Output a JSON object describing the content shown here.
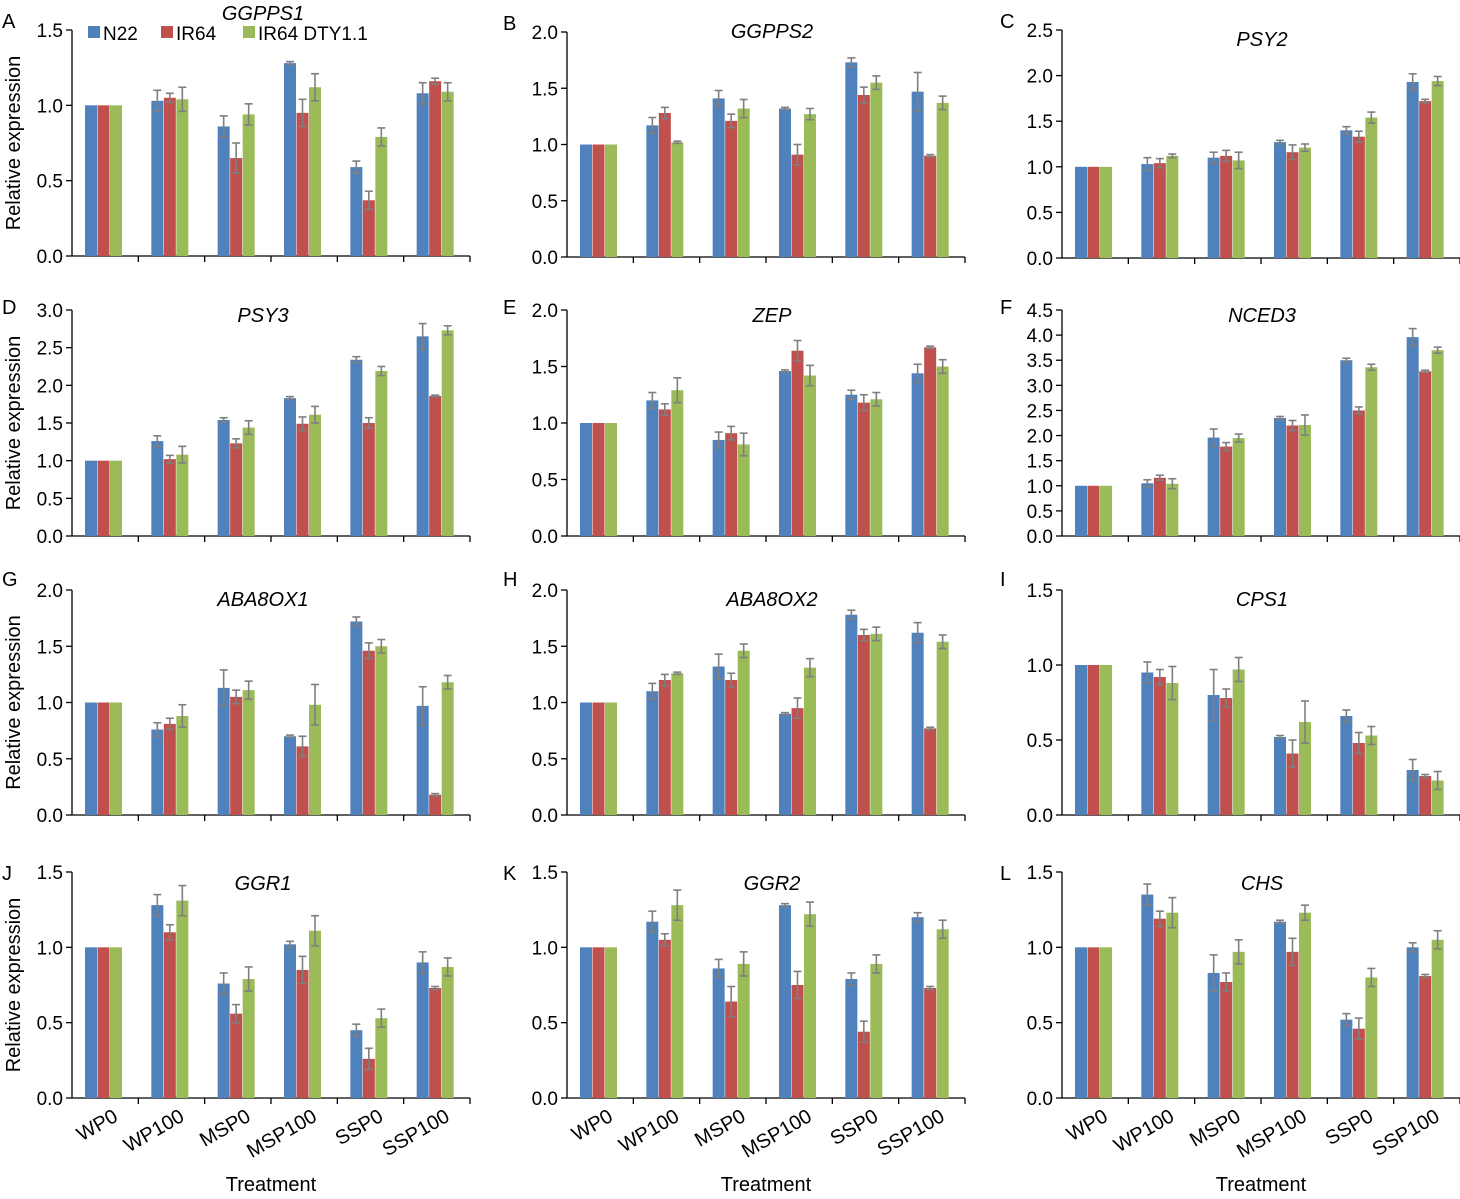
{
  "chart_data": [
    {
      "letter": "A",
      "gene": "GGPPS1",
      "type": "bar",
      "ylabel": "Relative expression",
      "xlabel": "",
      "yticks": [
        "0.0",
        "0.5",
        "1.0",
        "1.5"
      ],
      "ylim": [
        0,
        1.5
      ],
      "series": [
        {
          "name": "N22",
          "values": [
            1.0,
            1.03,
            0.86,
            1.28,
            0.59,
            1.08
          ],
          "errors": [
            0.005,
            0.07,
            0.07,
            0.01,
            0.04,
            0.07
          ]
        },
        {
          "name": "IR64",
          "values": [
            1.0,
            1.05,
            0.65,
            0.95,
            0.37,
            1.16
          ],
          "errors": [
            0.005,
            0.03,
            0.1,
            0.09,
            0.06,
            0.02
          ]
        },
        {
          "name": "IR64 DTY1.1",
          "values": [
            1.0,
            1.04,
            0.94,
            1.12,
            0.79,
            1.09
          ],
          "errors": [
            0.005,
            0.08,
            0.07,
            0.09,
            0.06,
            0.06
          ]
        }
      ]
    },
    {
      "letter": "B",
      "gene": "GGPPS2",
      "type": "bar",
      "ylabel": "",
      "xlabel": "",
      "yticks": [
        "0.0",
        "0.5",
        "1.0",
        "1.5",
        "2.0"
      ],
      "ylim": [
        0,
        2.0
      ],
      "series": [
        {
          "name": "N22",
          "values": [
            1.0,
            1.17,
            1.41,
            1.32,
            1.73,
            1.47
          ],
          "errors": [
            0.005,
            0.07,
            0.07,
            0.01,
            0.04,
            0.17
          ]
        },
        {
          "name": "IR64",
          "values": [
            1.0,
            1.28,
            1.21,
            0.91,
            1.44,
            0.9
          ],
          "errors": [
            0.005,
            0.05,
            0.06,
            0.09,
            0.07,
            0.01
          ]
        },
        {
          "name": "IR64 DTY1.1",
          "values": [
            1.0,
            1.02,
            1.32,
            1.27,
            1.55,
            1.37
          ],
          "errors": [
            0.005,
            0.01,
            0.08,
            0.05,
            0.06,
            0.06
          ]
        }
      ]
    },
    {
      "letter": "C",
      "gene": "PSY2",
      "type": "bar",
      "ylabel": "",
      "xlabel": "",
      "yticks": [
        "0.0",
        "0.5",
        "1.0",
        "1.5",
        "2.0",
        "2.5"
      ],
      "ylim": [
        0,
        2.5
      ],
      "series": [
        {
          "name": "N22",
          "values": [
            1.0,
            1.03,
            1.1,
            1.27,
            1.4,
            1.93
          ],
          "errors": [
            0.005,
            0.07,
            0.06,
            0.02,
            0.04,
            0.09
          ]
        },
        {
          "name": "IR64",
          "values": [
            1.0,
            1.04,
            1.12,
            1.16,
            1.33,
            1.72
          ],
          "errors": [
            0.005,
            0.05,
            0.06,
            0.08,
            0.06,
            0.02
          ]
        },
        {
          "name": "IR64 DTY1.1",
          "values": [
            1.0,
            1.12,
            1.07,
            1.21,
            1.54,
            1.94
          ],
          "errors": [
            0.005,
            0.02,
            0.09,
            0.04,
            0.06,
            0.05
          ]
        }
      ]
    },
    {
      "letter": "D",
      "gene": "PSY3",
      "type": "bar",
      "ylabel": "Relative expression",
      "xlabel": "",
      "yticks": [
        "0.0",
        "0.5",
        "1.0",
        "1.5",
        "2.0",
        "2.5",
        "3.0"
      ],
      "ylim": [
        0,
        3.0
      ],
      "series": [
        {
          "name": "N22",
          "values": [
            1.0,
            1.26,
            1.54,
            1.83,
            2.34,
            2.65
          ],
          "errors": [
            0.005,
            0.07,
            0.03,
            0.02,
            0.04,
            0.17
          ]
        },
        {
          "name": "IR64",
          "values": [
            1.0,
            1.02,
            1.23,
            1.49,
            1.5,
            1.86
          ],
          "errors": [
            0.005,
            0.05,
            0.06,
            0.09,
            0.07,
            0.01
          ]
        },
        {
          "name": "IR64 DTY1.1",
          "values": [
            1.0,
            1.08,
            1.44,
            1.61,
            2.19,
            2.73
          ],
          "errors": [
            0.005,
            0.11,
            0.09,
            0.11,
            0.06,
            0.06
          ]
        }
      ]
    },
    {
      "letter": "E",
      "gene": "ZEP",
      "type": "bar",
      "ylabel": "",
      "xlabel": "",
      "yticks": [
        "0.0",
        "0.5",
        "1.0",
        "1.5",
        "2.0"
      ],
      "ylim": [
        0,
        2.0
      ],
      "series": [
        {
          "name": "N22",
          "values": [
            1.0,
            1.2,
            0.85,
            1.46,
            1.25,
            1.44
          ],
          "errors": [
            0.005,
            0.07,
            0.07,
            0.01,
            0.04,
            0.08
          ]
        },
        {
          "name": "IR64",
          "values": [
            1.0,
            1.12,
            0.91,
            1.64,
            1.18,
            1.67
          ],
          "errors": [
            0.005,
            0.05,
            0.06,
            0.09,
            0.07,
            0.01
          ]
        },
        {
          "name": "IR64 DTY1.1",
          "values": [
            1.0,
            1.29,
            0.81,
            1.42,
            1.21,
            1.5
          ],
          "errors": [
            0.005,
            0.11,
            0.1,
            0.09,
            0.06,
            0.06
          ]
        }
      ]
    },
    {
      "letter": "F",
      "gene": "NCED3",
      "type": "bar",
      "ylabel": "",
      "xlabel": "",
      "yticks": [
        "0.0",
        "0.5",
        "1.0",
        "1.5",
        "2.0",
        "2.5",
        "3.0",
        "3.5",
        "4.0",
        "4.5"
      ],
      "ylim": [
        0,
        4.5
      ],
      "series": [
        {
          "name": "N22",
          "values": [
            1.0,
            1.05,
            1.96,
            2.35,
            3.5,
            3.96
          ],
          "errors": [
            0.005,
            0.07,
            0.17,
            0.03,
            0.04,
            0.17
          ]
        },
        {
          "name": "IR64",
          "values": [
            1.0,
            1.16,
            1.78,
            2.2,
            2.5,
            3.28
          ],
          "errors": [
            0.005,
            0.05,
            0.08,
            0.1,
            0.07,
            0.02
          ]
        },
        {
          "name": "IR64 DTY1.1",
          "values": [
            1.0,
            1.04,
            1.95,
            2.21,
            3.36,
            3.7
          ],
          "errors": [
            0.005,
            0.1,
            0.08,
            0.2,
            0.06,
            0.06
          ]
        }
      ]
    },
    {
      "letter": "G",
      "gene": "ABA8OX1",
      "type": "bar",
      "ylabel": "Relative expression",
      "xlabel": "",
      "yticks": [
        "0.0",
        "0.5",
        "1.0",
        "1.5",
        "2.0"
      ],
      "ylim": [
        0,
        2.0
      ],
      "series": [
        {
          "name": "N22",
          "values": [
            1.0,
            0.76,
            1.13,
            0.7,
            1.72,
            0.97
          ],
          "errors": [
            0.005,
            0.06,
            0.16,
            0.01,
            0.04,
            0.17
          ]
        },
        {
          "name": "IR64",
          "values": [
            1.0,
            0.81,
            1.05,
            0.61,
            1.46,
            0.18
          ],
          "errors": [
            0.005,
            0.05,
            0.06,
            0.09,
            0.07,
            0.01
          ]
        },
        {
          "name": "IR64 DTY1.1",
          "values": [
            1.0,
            0.88,
            1.11,
            0.98,
            1.5,
            1.18
          ],
          "errors": [
            0.005,
            0.1,
            0.08,
            0.18,
            0.06,
            0.06
          ]
        }
      ]
    },
    {
      "letter": "H",
      "gene": "ABA8OX2",
      "type": "bar",
      "ylabel": "",
      "xlabel": "",
      "yticks": [
        "0.0",
        "0.5",
        "1.0",
        "1.5",
        "2.0"
      ],
      "ylim": [
        0,
        2.0
      ],
      "series": [
        {
          "name": "N22",
          "values": [
            1.0,
            1.1,
            1.32,
            0.9,
            1.78,
            1.62
          ],
          "errors": [
            0.005,
            0.07,
            0.11,
            0.01,
            0.04,
            0.09
          ]
        },
        {
          "name": "IR64",
          "values": [
            1.0,
            1.2,
            1.2,
            0.95,
            1.6,
            0.77
          ],
          "errors": [
            0.005,
            0.05,
            0.06,
            0.09,
            0.05,
            0.01
          ]
        },
        {
          "name": "IR64 DTY1.1",
          "values": [
            1.0,
            1.26,
            1.46,
            1.31,
            1.61,
            1.54
          ],
          "errors": [
            0.005,
            0.01,
            0.06,
            0.08,
            0.06,
            0.06
          ]
        }
      ]
    },
    {
      "letter": "I",
      "gene": "CPS1",
      "type": "bar",
      "ylabel": "",
      "xlabel": "",
      "yticks": [
        "0.0",
        "0.5",
        "1.0",
        "1.5"
      ],
      "ylim": [
        0,
        1.5
      ],
      "series": [
        {
          "name": "N22",
          "values": [
            1.0,
            0.95,
            0.8,
            0.52,
            0.66,
            0.3
          ],
          "errors": [
            0.005,
            0.07,
            0.17,
            0.01,
            0.04,
            0.07
          ]
        },
        {
          "name": "IR64",
          "values": [
            1.0,
            0.92,
            0.78,
            0.41,
            0.48,
            0.26
          ],
          "errors": [
            0.005,
            0.05,
            0.06,
            0.09,
            0.07,
            0.01
          ]
        },
        {
          "name": "IR64 DTY1.1",
          "values": [
            1.0,
            0.88,
            0.97,
            0.62,
            0.53,
            0.23
          ],
          "errors": [
            0.005,
            0.11,
            0.08,
            0.14,
            0.06,
            0.06
          ]
        }
      ]
    },
    {
      "letter": "J",
      "gene": "GGR1",
      "type": "bar",
      "ylabel": "Relative expression",
      "xlabel": "Treatment",
      "yticks": [
        "0.0",
        "0.5",
        "1.0",
        "1.5"
      ],
      "ylim": [
        0,
        1.5
      ],
      "xticks": [
        "WP0",
        "WP100",
        "MSP0",
        "MSP100",
        "SSP0",
        "SSP100"
      ],
      "series": [
        {
          "name": "N22",
          "values": [
            1.0,
            1.28,
            0.76,
            1.02,
            0.45,
            0.9
          ],
          "errors": [
            0.005,
            0.07,
            0.07,
            0.02,
            0.04,
            0.07
          ]
        },
        {
          "name": "IR64",
          "values": [
            1.0,
            1.1,
            0.56,
            0.85,
            0.26,
            0.73
          ],
          "errors": [
            0.005,
            0.05,
            0.06,
            0.09,
            0.07,
            0.01
          ]
        },
        {
          "name": "IR64 DTY1.1",
          "values": [
            1.0,
            1.31,
            0.79,
            1.11,
            0.53,
            0.87
          ],
          "errors": [
            0.005,
            0.1,
            0.08,
            0.1,
            0.06,
            0.06
          ]
        }
      ]
    },
    {
      "letter": "K",
      "gene": "GGR2",
      "type": "bar",
      "ylabel": "",
      "xlabel": "Treatment",
      "yticks": [
        "0.0",
        "0.5",
        "1.0",
        "1.5"
      ],
      "ylim": [
        0,
        1.5
      ],
      "xticks": [
        "WP0",
        "WP100",
        "MSP0",
        "MSP100",
        "SSP0",
        "SSP100"
      ],
      "series": [
        {
          "name": "N22",
          "values": [
            1.0,
            1.17,
            0.86,
            1.28,
            0.79,
            1.2
          ],
          "errors": [
            0.005,
            0.07,
            0.06,
            0.01,
            0.04,
            0.03
          ]
        },
        {
          "name": "IR64",
          "values": [
            1.0,
            1.05,
            0.64,
            0.75,
            0.44,
            0.73
          ],
          "errors": [
            0.005,
            0.04,
            0.1,
            0.09,
            0.07,
            0.01
          ]
        },
        {
          "name": "IR64 DTY1.1",
          "values": [
            1.0,
            1.28,
            0.89,
            1.22,
            0.89,
            1.12
          ],
          "errors": [
            0.005,
            0.1,
            0.08,
            0.08,
            0.06,
            0.06
          ]
        }
      ]
    },
    {
      "letter": "L",
      "gene": "CHS",
      "type": "bar",
      "ylabel": "",
      "xlabel": "Treatment",
      "yticks": [
        "0.0",
        "0.5",
        "1.0",
        "1.5"
      ],
      "ylim": [
        0,
        1.5
      ],
      "xticks": [
        "WP0",
        "WP100",
        "MSP0",
        "MSP100",
        "SSP0",
        "SSP100"
      ],
      "series": [
        {
          "name": "N22",
          "values": [
            1.0,
            1.35,
            0.83,
            1.17,
            0.52,
            1.0
          ],
          "errors": [
            0.005,
            0.07,
            0.12,
            0.01,
            0.04,
            0.03
          ]
        },
        {
          "name": "IR64",
          "values": [
            1.0,
            1.19,
            0.77,
            0.97,
            0.46,
            0.81
          ],
          "errors": [
            0.005,
            0.05,
            0.06,
            0.09,
            0.07,
            0.01
          ]
        },
        {
          "name": "IR64 DTY1.1",
          "values": [
            1.0,
            1.23,
            0.97,
            1.23,
            0.8,
            1.05
          ],
          "errors": [
            0.005,
            0.1,
            0.08,
            0.05,
            0.06,
            0.06
          ]
        }
      ]
    }
  ],
  "legend": [
    "N22",
    "IR64",
    "IR64 DTY1.1"
  ],
  "colors": {
    "N22": "#4F81BD",
    "IR64": "#C0504D",
    "IR64 DTY1.1": "#9BBB59",
    "error": "#7F7F7F",
    "axis": "#000000"
  }
}
